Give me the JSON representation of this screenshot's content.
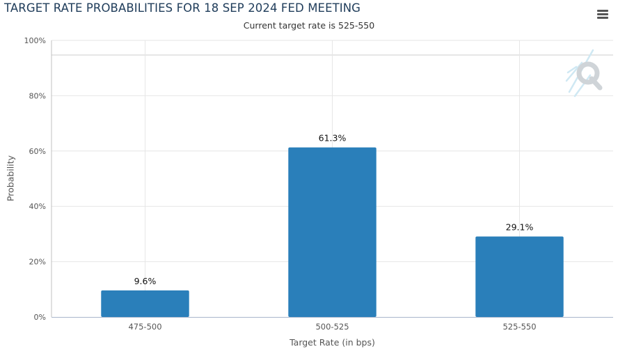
{
  "title": "TARGET RATE PROBABILITIES FOR 18 SEP 2024 FED MEETING",
  "subtitle": "Current target rate is 525-550",
  "icons": {
    "menu": "hamburger-menu-icon",
    "logo": "q-logo"
  },
  "colors": {
    "bar": "#2a7fba",
    "title": "#1f3c5a",
    "grid": "#e6e6e6",
    "axis": "#ccd6eb"
  },
  "chart_data": {
    "type": "bar",
    "categories": [
      "475-500",
      "500-525",
      "525-550"
    ],
    "values": [
      9.6,
      61.3,
      29.1
    ],
    "value_labels": [
      "9.6%",
      "61.3%",
      "29.1%"
    ],
    "title": "TARGET RATE PROBABILITIES FOR 18 SEP 2024 FED MEETING",
    "subtitle": "Current target rate is 525-550",
    "xlabel": "Target Rate (in bps)",
    "ylabel": "Probability",
    "ylim": [
      0,
      100
    ],
    "yticks": [
      "0%",
      "20%",
      "40%",
      "60%",
      "80%",
      "100%"
    ],
    "grid": true,
    "legend": "none"
  }
}
